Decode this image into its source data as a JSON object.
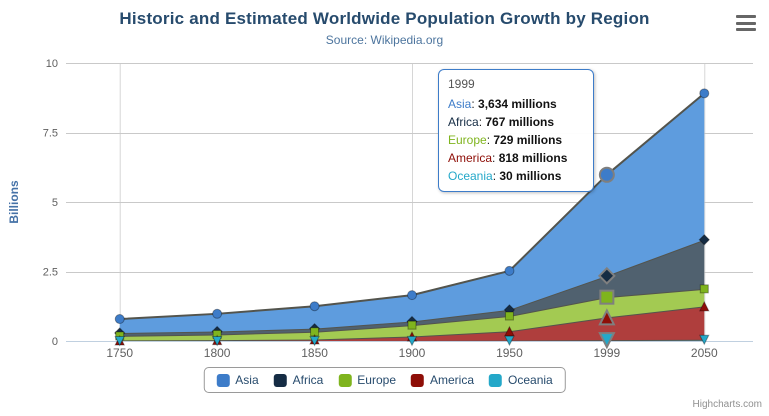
{
  "title": "Historic and Estimated Worldwide Population Growth by Region",
  "subtitle": "Source: Wikipedia.org",
  "credits": "Highcharts.com",
  "chart_data": {
    "type": "area",
    "stacking": "normal",
    "unit": "millions",
    "categories": [
      "1750",
      "1800",
      "1850",
      "1900",
      "1950",
      "1999",
      "2050"
    ],
    "series": [
      {
        "name": "Asia",
        "color": "#3d7cc9",
        "fill": "#5e9cde",
        "marker": "circle",
        "values": [
          502,
          635,
          809,
          947,
          1402,
          3634,
          5268
        ]
      },
      {
        "name": "Africa",
        "color": "#152c44",
        "fill": "#50616f",
        "marker": "diamond",
        "values": [
          106,
          107,
          111,
          133,
          221,
          767,
          1766
        ]
      },
      {
        "name": "Europe",
        "color": "#7fb41e",
        "fill": "#a3ca52",
        "marker": "square",
        "values": [
          163,
          203,
          276,
          408,
          547,
          729,
          628
        ]
      },
      {
        "name": "America",
        "color": "#8e0e07",
        "fill": "#af3e3d",
        "marker": "triangle",
        "values": [
          18,
          31,
          54,
          156,
          339,
          818,
          1201
        ]
      },
      {
        "name": "Oceania",
        "color": "#24a8c9",
        "fill": "#5bbed6",
        "marker": "triangle-down",
        "values": [
          2,
          2,
          2,
          6,
          13,
          30,
          46
        ]
      }
    ],
    "yaxis": {
      "title": "Billions",
      "ticks": [
        0,
        2.5,
        5,
        7.5,
        10
      ],
      "max": 10
    },
    "xlabel": "",
    "grid": true,
    "x_grid_indices": [
      0,
      3,
      6
    ],
    "legend_position": "bottom-center",
    "hover": {
      "category_index": 5
    }
  },
  "tooltip": {
    "header": "1999",
    "border_color": "#3d7cc9",
    "rows": [
      {
        "name": "Asia",
        "color": "#3d7cc9",
        "value": "3,634 millions"
      },
      {
        "name": "Africa",
        "color": "#152c44",
        "value": "767 millions"
      },
      {
        "name": "Europe",
        "color": "#7fb41e",
        "value": "729 millions"
      },
      {
        "name": "America",
        "color": "#8e0e07",
        "value": "818 millions"
      },
      {
        "name": "Oceania",
        "color": "#24a8c9",
        "value": "30 millions"
      }
    ]
  }
}
